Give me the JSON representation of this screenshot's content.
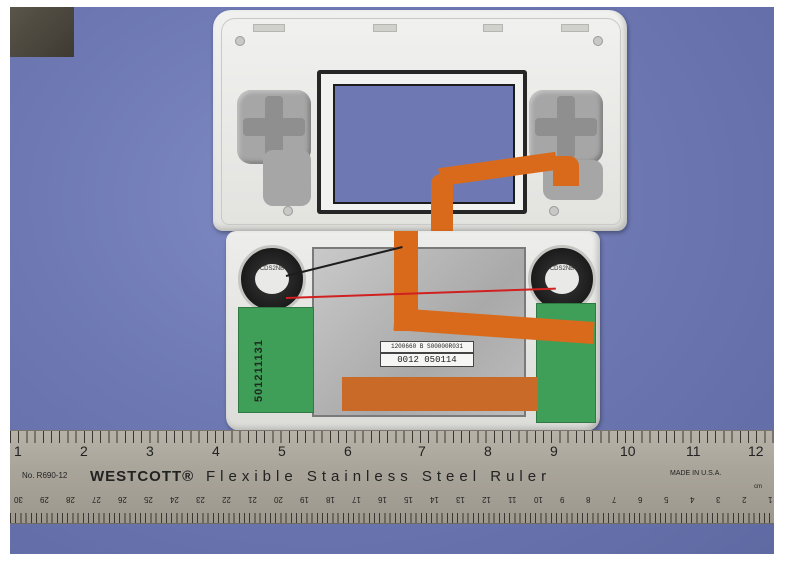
{
  "ruler": {
    "inches": [
      "1",
      "2",
      "3",
      "4",
      "5",
      "6",
      "7",
      "8",
      "9",
      "10",
      "11",
      "12"
    ],
    "model": "No. R690-12",
    "brand": "WESTCOTT®",
    "description": "Flexible Stainless Steel Ruler",
    "made_in": "MADE IN U.S.A.",
    "cm_unit": "cm",
    "cm_marks": [
      "30",
      "29",
      "28",
      "27",
      "26",
      "25",
      "24",
      "23",
      "22",
      "21",
      "20",
      "19",
      "18",
      "17",
      "16",
      "15",
      "14",
      "13",
      "12",
      "11",
      "10",
      "9",
      "8",
      "7",
      "6",
      "5",
      "4",
      "3",
      "2",
      "1"
    ]
  },
  "device": {
    "pcb_serial": "501211131",
    "shield_label_line1": "1200660 B S00000R031",
    "shield_label_line2": "0012  050114",
    "speaker_text": "CDS2NB"
  },
  "colors": {
    "background": "#6e79b4",
    "flex_cable": "#d96a1c",
    "pcb": "#3f9e58",
    "shell": "#ededeb"
  }
}
